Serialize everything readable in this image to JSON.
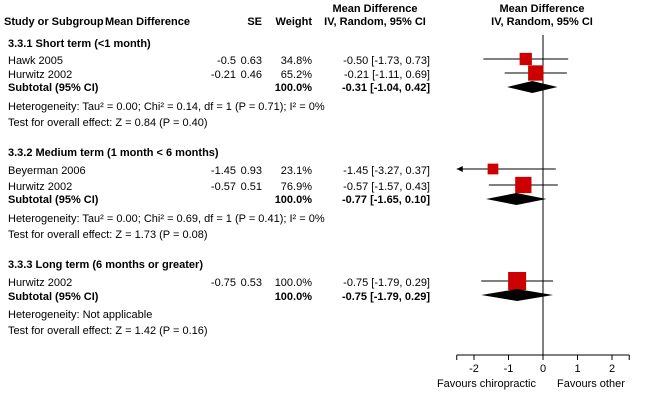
{
  "header": {
    "study": "Study or Subgroup",
    "md": "Mean Difference",
    "se": "SE",
    "weight": "Weight",
    "ci_title": "Mean Difference",
    "ci_sub": "IV, Random, 95% CI",
    "plot_title": "Mean Difference",
    "plot_sub": "IV, Random, 95% CI"
  },
  "groups": [
    {
      "title": "3.3.1 Short term (<1 month)",
      "studies": [
        {
          "name": "Hawk 2005",
          "md": "-0.5",
          "se": "0.63",
          "weight": "34.8%",
          "ci": "-0.50 [-1.73, 0.73]"
        },
        {
          "name": "Hurwitz 2002",
          "md": "-0.21",
          "se": "0.46",
          "weight": "65.2%",
          "ci": "-0.21 [-1.11, 0.69]"
        }
      ],
      "subtotal": {
        "label": "Subtotal (95% CI)",
        "weight": "100.0%",
        "ci": "-0.31 [-1.04, 0.42]"
      },
      "heterogeneity": "Heterogeneity: Tau² = 0.00; Chi² = 0.14, df = 1 (P = 0.71); I² = 0%",
      "overall": "Test for overall effect: Z = 0.84 (P = 0.40)"
    },
    {
      "title": "3.3.2 Medium term (1 month < 6 months)",
      "studies": [
        {
          "name": "Beyerman 2006",
          "md": "-1.45",
          "se": "0.93",
          "weight": "23.1%",
          "ci": "-1.45 [-3.27, 0.37]"
        },
        {
          "name": "Hurwitz 2002",
          "md": "-0.57",
          "se": "0.51",
          "weight": "76.9%",
          "ci": "-0.57 [-1.57, 0.43]"
        }
      ],
      "subtotal": {
        "label": "Subtotal (95% CI)",
        "weight": "100.0%",
        "ci": "-0.77 [-1.65, 0.10]"
      },
      "heterogeneity": "Heterogeneity: Tau² = 0.00; Chi² = 0.69, df = 1 (P = 0.41); I² = 0%",
      "overall": "Test for overall effect: Z = 1.73 (P = 0.08)"
    },
    {
      "title": "3.3.3 Long term (6 months or greater)",
      "studies": [
        {
          "name": "Hurwitz 2002",
          "md": "-0.75",
          "se": "0.53",
          "weight": "100.0%",
          "ci": "-0.75 [-1.79, 0.29]"
        }
      ],
      "subtotal": {
        "label": "Subtotal (95% CI)",
        "weight": "100.0%",
        "ci": "-0.75 [-1.79, 0.29]"
      },
      "heterogeneity": "Heterogeneity: Not applicable",
      "overall": "Test for overall effect: Z = 1.42 (P = 0.16)"
    }
  ],
  "axis": {
    "ticks": [
      "-2",
      "-1",
      "0",
      "1",
      "2"
    ],
    "favours_left": "Favours chiropractic",
    "favours_right": "Favours other"
  },
  "colors": {
    "square": "#cc0000",
    "diamond": "#000000",
    "line": "#000000"
  },
  "chart_data": {
    "type": "forest",
    "title": "Mean Difference IV, Random, 95% CI",
    "xlim": [
      -2.5,
      2.5
    ],
    "xticks": [
      -2,
      -1,
      0,
      1,
      2
    ],
    "xlabel_left": "Favours chiropractic",
    "xlabel_right": "Favours other",
    "studies": [
      {
        "name": "Hawk 2005",
        "group": "3.3.1 Short term (<1 month)",
        "md": -0.5,
        "lo": -1.73,
        "hi": 0.73,
        "weight": 34.8
      },
      {
        "name": "Hurwitz 2002",
        "group": "3.3.1 Short term (<1 month)",
        "md": -0.21,
        "lo": -1.11,
        "hi": 0.69,
        "weight": 65.2
      },
      {
        "name": "Beyerman 2006",
        "group": "3.3.2 Medium term (1 month < 6 months)",
        "md": -1.45,
        "lo": -3.27,
        "hi": 0.37,
        "weight": 23.1
      },
      {
        "name": "Hurwitz 2002",
        "group": "3.3.2 Medium term (1 month < 6 months)",
        "md": -0.57,
        "lo": -1.57,
        "hi": 0.43,
        "weight": 76.9
      },
      {
        "name": "Hurwitz 2002",
        "group": "3.3.3 Long term (6 months or greater)",
        "md": -0.75,
        "lo": -1.79,
        "hi": 0.29,
        "weight": 100.0
      }
    ],
    "subtotals": [
      {
        "group": "3.3.1 Short term (<1 month)",
        "md": -0.31,
        "lo": -1.04,
        "hi": 0.42
      },
      {
        "group": "3.3.2 Medium term (1 month < 6 months)",
        "md": -0.77,
        "lo": -1.65,
        "hi": 0.1
      },
      {
        "group": "3.3.3 Long term (6 months or greater)",
        "md": -0.75,
        "lo": -1.79,
        "hi": 0.29
      }
    ]
  }
}
